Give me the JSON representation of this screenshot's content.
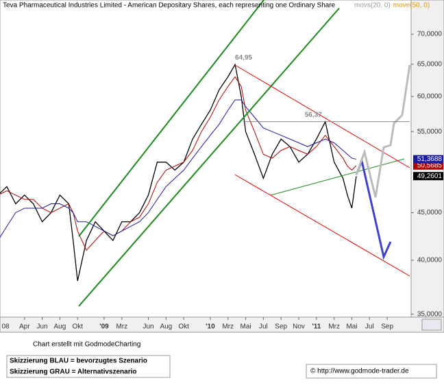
{
  "chart_data": {
    "type": "line",
    "title": "Teva Pharmaceutical Industries Limited - American Depositary Shares, each representing one Ordinary Share",
    "log_scale": true,
    "x": [
      0,
      1,
      2,
      3,
      4,
      5,
      6,
      7,
      8,
      8.5,
      9,
      10,
      11,
      12,
      13,
      14,
      15,
      16,
      17,
      18,
      19,
      20,
      21,
      22,
      23,
      24,
      25,
      26,
      26.8,
      27.5,
      28,
      29,
      30,
      31,
      32,
      33,
      34,
      35,
      36,
      37,
      38,
      39,
      39.5,
      40,
      40.5
    ],
    "series": [
      {
        "color": "#000000",
        "values": [
          47,
          48,
          46,
          47,
          46,
          44,
          45,
          47,
          46,
          42,
          38,
          42,
          44,
          43,
          42,
          44,
          44,
          45,
          47,
          51,
          51,
          50,
          51,
          54,
          56,
          58,
          61,
          63,
          64.95,
          60,
          55,
          52,
          49,
          52,
          54,
          53,
          51,
          52,
          54,
          56.37,
          51,
          49,
          47,
          45.5,
          49.2601
        ],
        "last_label": "49,2601"
      },
      {
        "name": "movs(20, 0)",
        "color": "#b00000",
        "label_color": "#999999",
        "values": [
          47,
          47.5,
          47,
          46.5,
          46.5,
          45.5,
          45,
          45.5,
          46,
          45,
          43,
          41,
          42,
          43,
          42.5,
          43,
          44,
          44.5,
          46,
          48.5,
          50,
          50.5,
          51,
          52.5,
          55,
          57,
          59.5,
          61.5,
          63,
          61.5,
          58,
          55,
          52,
          51.5,
          52.5,
          53,
          52.5,
          52,
          53,
          54.5,
          53,
          51.5,
          50.5,
          50,
          50.5685
        ],
        "last_label": "50,5685"
      },
      {
        "name": "move(50, 0)",
        "color": "#1a1aa0",
        "label_color": "#e69500",
        "values": [
          42,
          43.5,
          45,
          45.5,
          45.5,
          45.5,
          46,
          46,
          45.5,
          45,
          44,
          44,
          43.5,
          43,
          42.5,
          43,
          43.5,
          44,
          45,
          46.5,
          48,
          49,
          50,
          51.5,
          53,
          54.5,
          56,
          58,
          59.5,
          59.5,
          58.5,
          57,
          55.5,
          55,
          54.5,
          54,
          53.5,
          53,
          53.5,
          54,
          53.5,
          52.5,
          52,
          51.5,
          51.3688
        ],
        "last_label": "51,3688"
      }
    ],
    "annotations": [
      {
        "value": 64.95,
        "label": "64,95"
      },
      {
        "value": 56.37,
        "label": "56,37"
      }
    ],
    "xlim": [
      0.23,
      46.7
    ],
    "xticks": [
      {
        "value": 0,
        "label": "08"
      },
      {
        "value": 3,
        "label": "Apr"
      },
      {
        "value": 5,
        "label": "Jun"
      },
      {
        "value": 7,
        "label": "Aug"
      },
      {
        "value": 9,
        "label": "Okt"
      },
      {
        "value": 12,
        "label": "'09"
      },
      {
        "value": 14,
        "label": "Mrz"
      },
      {
        "value": 17,
        "label": "Jun"
      },
      {
        "value": 19,
        "label": "Aug"
      },
      {
        "value": 21,
        "label": "Okt"
      },
      {
        "value": 24,
        "label": "'10"
      },
      {
        "value": 26,
        "label": "Mrz"
      },
      {
        "value": 28,
        "label": "Mai"
      },
      {
        "value": 30,
        "label": "Jul"
      },
      {
        "value": 32,
        "label": "Sep"
      },
      {
        "value": 34,
        "label": "Nov"
      },
      {
        "value": 36,
        "label": "'11"
      },
      {
        "value": 38,
        "label": "Mrz"
      },
      {
        "value": 40,
        "label": "Mai"
      },
      {
        "value": 42,
        "label": "Jul"
      },
      {
        "value": 44,
        "label": "Sep"
      }
    ],
    "ylim": [
      34.8,
      76.2
    ],
    "yticks": [
      {
        "value": 35,
        "label": "35,0000"
      },
      {
        "value": 40,
        "label": "40,0000"
      },
      {
        "value": 45,
        "label": "45,0000"
      },
      {
        "value": 55,
        "label": "55,0000"
      },
      {
        "value": 60,
        "label": "60,0000"
      },
      {
        "value": 65,
        "label": "65,0000"
      },
      {
        "value": 70,
        "label": "70,0000"
      }
    ],
    "credit": "Chart erstellt mit GodmodeCharting",
    "notes": [
      "Skizzierung BLAU = bevorzugtes Szenario",
      "Skizzierung GRAU = Alternativszenario"
    ],
    "source": "© http://www.godmode-trader.de"
  }
}
